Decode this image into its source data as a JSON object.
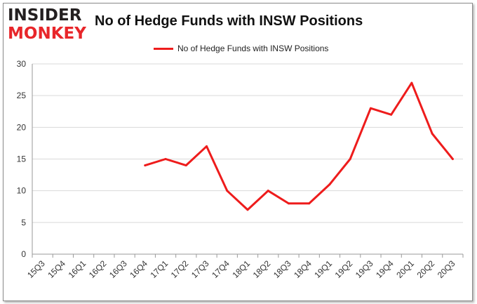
{
  "logo": {
    "line1": "INSIDER",
    "line2": "MONKEY"
  },
  "chart_data": {
    "type": "line",
    "title": "No of Hedge Funds with INSW Positions",
    "xlabel": "",
    "ylabel": "",
    "categories": [
      "15Q3",
      "15Q4",
      "16Q1",
      "16Q2",
      "16Q3",
      "16Q4",
      "17Q1",
      "17Q2",
      "17Q3",
      "17Q4",
      "18Q1",
      "18Q2",
      "18Q3",
      "18Q4",
      "19Q1",
      "19Q2",
      "19Q3",
      "19Q4",
      "20Q1",
      "20Q2",
      "20Q3"
    ],
    "series": [
      {
        "name": "No of Hedge Funds with INSW Positions",
        "color": "#ee1c1c",
        "values": [
          null,
          null,
          null,
          null,
          null,
          14,
          15,
          14,
          17,
          10,
          7,
          10,
          8,
          8,
          11,
          15,
          23,
          22,
          27,
          19,
          15
        ]
      }
    ],
    "ylim": [
      0,
      30
    ],
    "yticks": [
      0,
      5,
      10,
      15,
      20,
      25,
      30
    ],
    "grid": true,
    "legend_position": "top-center"
  }
}
